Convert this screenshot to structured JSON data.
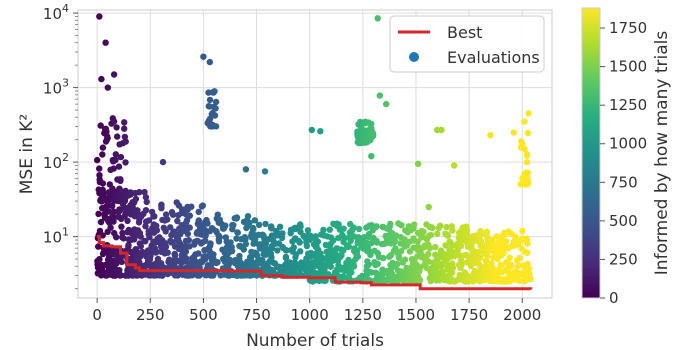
{
  "chart_data": {
    "type": "scatter",
    "xlabel": "Number of trials",
    "ylabel": "MSE in K²",
    "xlim": [
      -90,
      2140
    ],
    "x_ticks": [
      0,
      250,
      500,
      750,
      1000,
      1250,
      1500,
      1750,
      2000
    ],
    "y_scale": "log",
    "ylim": [
      1.5,
      11000
    ],
    "y_ticks": [
      {
        "value": 10,
        "base": "10",
        "exp": "1"
      },
      {
        "value": 100,
        "base": "10",
        "exp": "2"
      },
      {
        "value": 1000,
        "base": "10",
        "exp": "3"
      },
      {
        "value": 10000,
        "base": "10",
        "exp": "4"
      }
    ],
    "grid": true,
    "legend": {
      "position": "top-right",
      "entries": [
        {
          "label": "Best",
          "marker": "line",
          "color": "#d62728"
        },
        {
          "label": "Evaluations",
          "marker": "dot",
          "color": "#1f77b4"
        }
      ]
    },
    "colorbar": {
      "label": "Informed by how many trials",
      "range": [
        0,
        1880
      ],
      "ticks": [
        0,
        250,
        500,
        750,
        1000,
        1250,
        1500,
        1750
      ],
      "colormap": "viridis"
    },
    "series": [
      {
        "name": "Best",
        "kind": "step-line",
        "color": "#d62728",
        "points": [
          [
            0,
            10
          ],
          [
            10,
            8.3
          ],
          [
            30,
            7.5
          ],
          [
            70,
            7.3
          ],
          [
            110,
            6.0
          ],
          [
            140,
            4.2
          ],
          [
            180,
            3.8
          ],
          [
            200,
            3.5
          ],
          [
            620,
            3.45
          ],
          [
            770,
            3.0
          ],
          [
            870,
            2.85
          ],
          [
            1000,
            2.8
          ],
          [
            1120,
            2.45
          ],
          [
            1240,
            2.4
          ],
          [
            1290,
            2.25
          ],
          [
            1520,
            2.0
          ],
          [
            2040,
            1.95
          ]
        ]
      },
      {
        "name": "Evaluations",
        "kind": "scatter",
        "color_by": "trial",
        "clusters": [
          {
            "x": [
              0,
              250
            ],
            "y": [
              3,
              40
            ],
            "n": 280
          },
          {
            "x": [
              250,
              500
            ],
            "y": [
              3,
              30
            ],
            "n": 230
          },
          {
            "x": [
              500,
              750
            ],
            "y": [
              3,
              20
            ],
            "n": 200
          },
          {
            "x": [
              750,
              1000
            ],
            "y": [
              3,
              15
            ],
            "n": 180
          },
          {
            "x": [
              1000,
              1250
            ],
            "y": [
              2.5,
              15
            ],
            "n": 180
          },
          {
            "x": [
              1250,
              1500
            ],
            "y": [
              2.5,
              15
            ],
            "n": 180
          },
          {
            "x": [
              1500,
              1750
            ],
            "y": [
              2.5,
              15
            ],
            "n": 180
          },
          {
            "x": [
              1750,
              2040
            ],
            "y": [
              2.5,
              12
            ],
            "n": 200
          },
          {
            "x": [
              0,
              140
            ],
            "y": [
              30,
              400
            ],
            "n": 70
          },
          {
            "x": [
              520,
              560
            ],
            "y": [
              300,
              900
            ],
            "n": 25
          },
          {
            "x": [
              1220,
              1300
            ],
            "y": [
              180,
              350
            ],
            "n": 40
          },
          {
            "x": [
              1990,
              2030
            ],
            "y": [
              50,
              250
            ],
            "n": 20
          }
        ],
        "outliers": [
          [
            10,
            9000
          ],
          [
            40,
            4000
          ],
          [
            80,
            1500
          ],
          [
            20,
            1300
          ],
          [
            50,
            1000
          ],
          [
            500,
            2600
          ],
          [
            530,
            2200
          ],
          [
            1330,
            780
          ],
          [
            1360,
            600
          ],
          [
            1620,
            270
          ],
          [
            1600,
            270
          ],
          [
            1010,
            270
          ],
          [
            1050,
            260
          ],
          [
            790,
            75
          ],
          [
            700,
            80
          ],
          [
            2030,
            450
          ],
          [
            1960,
            250
          ],
          [
            1850,
            230
          ],
          [
            2010,
            350
          ],
          [
            1680,
            90
          ],
          [
            1290,
            120
          ],
          [
            310,
            100
          ],
          [
            1320,
            8500
          ],
          [
            1510,
            95
          ],
          [
            1560,
            25
          ]
        ]
      }
    ]
  }
}
